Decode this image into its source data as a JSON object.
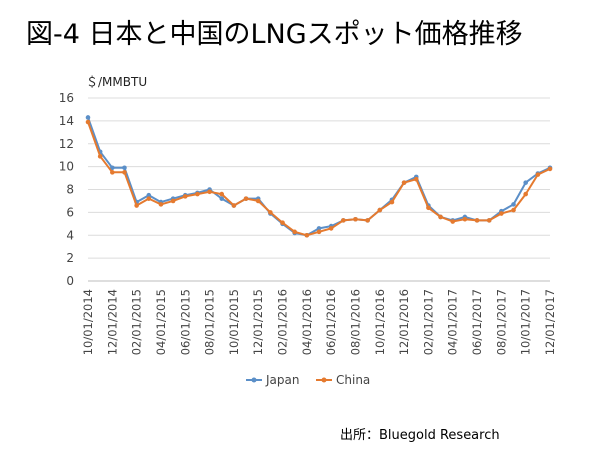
{
  "header": {
    "title": "図-4 日本と中国のLNGスポット価格推移"
  },
  "source": "出所：Bluegold Research",
  "chart_data": {
    "type": "line",
    "title": "図-4 日本と中国のLNGスポット価格推移",
    "ylabel": "＄/MMBTU",
    "xlabel": "",
    "ylim": [
      0,
      16
    ],
    "yticks": [
      0,
      2,
      4,
      6,
      8,
      10,
      12,
      14,
      16
    ],
    "grid": true,
    "legend": "bottom",
    "categories": [
      "10/01/2014",
      "11/01/2014",
      "12/01/2014",
      "01/01/2015",
      "02/01/2015",
      "03/01/2015",
      "04/01/2015",
      "05/01/2015",
      "06/01/2015",
      "07/01/2015",
      "08/01/2015",
      "09/01/2015",
      "10/01/2015",
      "11/01/2015",
      "12/01/2015",
      "01/01/2016",
      "02/01/2016",
      "03/01/2016",
      "04/01/2016",
      "05/01/2016",
      "06/01/2016",
      "07/01/2016",
      "08/01/2016",
      "09/01/2016",
      "10/01/2016",
      "11/01/2016",
      "12/01/2016",
      "01/01/2017",
      "02/01/2017",
      "03/01/2017",
      "04/01/2017",
      "05/01/2017",
      "06/01/2017",
      "07/01/2017",
      "08/01/2017",
      "09/01/2017",
      "10/01/2017",
      "11/01/2017",
      "12/01/2017"
    ],
    "tick_labels": [
      "10/01/2014",
      "12/01/2014",
      "02/01/2015",
      "04/01/2015",
      "06/01/2015",
      "08/01/2015",
      "10/01/2015",
      "12/01/2015",
      "02/01/2016",
      "04/01/2016",
      "06/01/2016",
      "08/01/2016",
      "10/01/2016",
      "12/01/2016",
      "02/01/2017",
      "04/01/2017",
      "06/01/2017",
      "08/01/2017",
      "10/01/2017",
      "12/01/2017"
    ],
    "series": [
      {
        "name": "Japan",
        "color": "#5B8FC8",
        "values": [
          14.3,
          11.3,
          9.9,
          9.9,
          6.9,
          7.5,
          6.9,
          7.2,
          7.5,
          7.7,
          8.0,
          7.2,
          6.6,
          7.2,
          7.2,
          5.9,
          5.0,
          4.2,
          4.0,
          4.6,
          4.8,
          5.3,
          5.4,
          5.3,
          6.2,
          7.1,
          8.6,
          9.1,
          6.6,
          5.6,
          5.3,
          5.6,
          5.3,
          5.3,
          6.1,
          6.7,
          8.6,
          9.4,
          9.9
        ]
      },
      {
        "name": "China",
        "color": "#E57A2F",
        "values": [
          13.9,
          10.9,
          9.5,
          9.5,
          6.6,
          7.2,
          6.7,
          7.0,
          7.4,
          7.6,
          7.8,
          7.6,
          6.6,
          7.2,
          7.0,
          6.0,
          5.1,
          4.3,
          4.0,
          4.3,
          4.6,
          5.3,
          5.4,
          5.3,
          6.2,
          6.9,
          8.6,
          8.9,
          6.4,
          5.6,
          5.2,
          5.4,
          5.3,
          5.3,
          5.9,
          6.2,
          7.6,
          9.3,
          9.8
        ]
      }
    ]
  }
}
